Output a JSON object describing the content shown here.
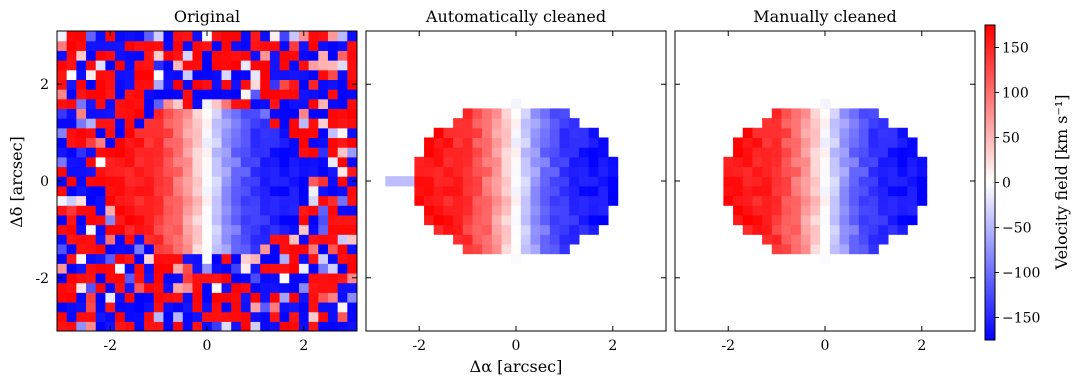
{
  "chart_data": {
    "type": "heatmap",
    "panels": [
      {
        "title": "Original",
        "kind": "noisy"
      },
      {
        "title": "Automatically cleaned",
        "kind": "auto"
      },
      {
        "title": "Manually cleaned",
        "kind": "manual"
      }
    ],
    "xlabel": "Δα [arcsec]",
    "ylabel": "Δδ [arcsec]",
    "xlim": [
      -3.1,
      3.1
    ],
    "ylim": [
      -3.1,
      3.1
    ],
    "x_ticks": [
      "-2",
      "0",
      "2"
    ],
    "x_tick_values": [
      -2,
      0,
      2
    ],
    "y_ticks": [
      "2",
      "0",
      "-2"
    ],
    "y_tick_values": [
      2,
      0,
      -2
    ],
    "colorbar": {
      "label": "Velocity field [km s⁻¹]",
      "range": [
        -175,
        175
      ],
      "ticks": [
        "150",
        "100",
        "50",
        "0",
        "−50",
        "−100",
        "−150"
      ],
      "tick_values": [
        150,
        100,
        50,
        0,
        -50,
        -100,
        -150
      ],
      "colormap": [
        "#0000ff",
        "#ffffff",
        "#ff0000"
      ]
    },
    "pixel_scale_arcsec": 0.2,
    "galaxy": {
      "vmax": 170,
      "rotation_scale": 0.9,
      "disk_center": [
        0.0,
        0.0
      ],
      "disk_rx": 2.1,
      "disk_ry": 1.6
    }
  }
}
